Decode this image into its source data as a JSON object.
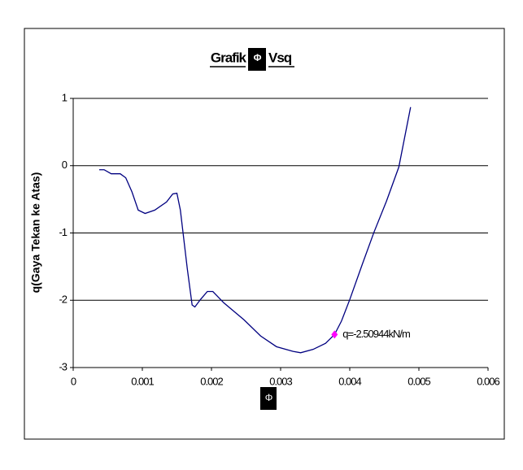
{
  "chart_data": {
    "type": "line",
    "title_parts": [
      "Grafik",
      "Vsq"
    ],
    "y_label": "q(Gaya Tekan ke Atas)",
    "x": [
      0.000376,
      0.000447,
      0.00055,
      0.00068,
      0.00076,
      0.00085,
      0.00094,
      0.00104,
      0.00118,
      0.00135,
      0.00144,
      0.0015,
      0.00155,
      0.00165,
      0.00172,
      0.00176,
      0.00184,
      0.00194,
      0.00202,
      0.00218,
      0.00247,
      0.00271,
      0.00294,
      0.00318,
      0.00329,
      0.00347,
      0.00365,
      0.00378,
      0.00388,
      0.004,
      0.00418,
      0.00435,
      0.00453,
      0.00471,
      0.00488
    ],
    "series": [
      {
        "name": "q",
        "color": "#000080",
        "values": [
          -0.06,
          -0.06,
          -0.12,
          -0.12,
          -0.18,
          -0.39,
          -0.66,
          -0.71,
          -0.66,
          -0.54,
          -0.42,
          -0.41,
          -0.66,
          -1.53,
          -2.07,
          -2.1,
          -1.99,
          -1.87,
          -1.87,
          -2.04,
          -2.29,
          -2.53,
          -2.69,
          -2.76,
          -2.78,
          -2.73,
          -2.64,
          -2.50944,
          -2.31,
          -1.99,
          -1.47,
          -0.99,
          -0.53,
          -0.02,
          0.87
        ]
      }
    ],
    "annotation": {
      "x": 0.00378,
      "y": -2.50944,
      "label": "q=-2.50944kN/m",
      "color": "#ff00ff"
    },
    "xlim": [
      0,
      0.006
    ],
    "xticks": [
      0,
      0.001,
      0.002,
      0.003,
      0.004,
      0.005,
      0.006
    ],
    "ylim": [
      -3,
      1
    ],
    "yticks": [
      1,
      0,
      -1,
      -2,
      -3
    ],
    "grid": true
  }
}
